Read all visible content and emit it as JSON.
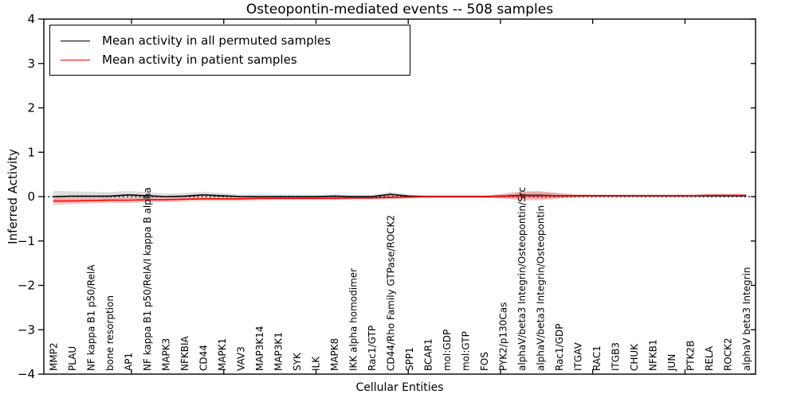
{
  "chart_data": {
    "type": "line",
    "title": "Osteopontin-mediated events -- 508 samples",
    "xlabel": "Cellular Entities",
    "ylabel": "Inferred Activity",
    "ylim": [
      -4,
      4
    ],
    "yticks": [
      4,
      3,
      2,
      1,
      0,
      -1,
      -2,
      -3,
      -4
    ],
    "grid": false,
    "legend_position": "upper left",
    "zero_line": {
      "value": 0,
      "style": "dotted",
      "color": "#000000"
    },
    "x_tick_label_rotation": 90,
    "categories": [
      "MMP2",
      "PLAU",
      "NF kappa B1 p50/RelA",
      "bone resorption",
      "AP1",
      "NF kappa B1 p50/RelA/I kappa B alpha",
      "MAPK3",
      "NFKBIA",
      "CD44",
      "MAPK1",
      "VAV3",
      "MAP3K14",
      "MAP3K1",
      "SYK",
      "ILK",
      "MAPK8",
      "IKK alpha homodimer",
      "Rac1/GTP",
      "CD44/Rho Family GTPase/ROCK2",
      "SPP1",
      "BCAR1",
      "mol:GDP",
      "mol:GTP",
      "FOS",
      "PYK2/p130Cas",
      "alphaV/beta3 Integrin/Osteopontin/Src",
      "alphaV/beta3 Integrin/Osteopontin",
      "Rac1/GDP",
      "ITGAV",
      "RAC1",
      "ITGB3",
      "CHUK",
      "NFKB1",
      "JUN",
      "PTK2B",
      "RELA",
      "ROCK2",
      "alphaV beta3 Integrin"
    ],
    "series": [
      {
        "name": "Mean activity in all permuted samples",
        "color": "#000000",
        "band_color": "#bbbbbb",
        "band_opacity": 0.5,
        "values": [
          0.0,
          0.01,
          0.01,
          0.01,
          0.04,
          0.02,
          0.0,
          0.01,
          0.04,
          0.02,
          0.0,
          0.0,
          0.0,
          0.0,
          0.0,
          0.01,
          0.0,
          0.0,
          0.05,
          0.01,
          0.0,
          0.0,
          0.0,
          0.0,
          0.01,
          0.03,
          0.03,
          0.02,
          0.02,
          0.02,
          0.02,
          0.02,
          0.02,
          0.02,
          0.02,
          0.02,
          0.02,
          0.02
        ],
        "band_halfwidth": [
          0.13,
          0.11,
          0.1,
          0.09,
          0.09,
          0.08,
          0.07,
          0.07,
          0.07,
          0.06,
          0.05,
          0.05,
          0.05,
          0.05,
          0.04,
          0.04,
          0.04,
          0.04,
          0.06,
          0.04,
          0.03,
          0.03,
          0.03,
          0.03,
          0.05,
          0.08,
          0.08,
          0.05,
          0.03,
          0.03,
          0.03,
          0.03,
          0.03,
          0.03,
          0.03,
          0.03,
          0.03,
          0.03
        ]
      },
      {
        "name": "Mean activity in patient samples",
        "color": "#ff0000",
        "band_color": "#ff7070",
        "band_opacity": 0.45,
        "values": [
          -0.1,
          -0.1,
          -0.09,
          -0.08,
          -0.08,
          -0.07,
          -0.07,
          -0.06,
          -0.05,
          -0.05,
          -0.05,
          -0.04,
          -0.04,
          -0.04,
          -0.04,
          -0.04,
          -0.03,
          -0.03,
          -0.02,
          -0.01,
          0.0,
          0.0,
          0.0,
          0.0,
          0.01,
          0.02,
          0.02,
          0.02,
          0.02,
          0.02,
          0.02,
          0.02,
          0.02,
          0.02,
          0.02,
          0.03,
          0.03,
          0.03
        ],
        "band_halfwidth": [
          0.08,
          0.07,
          0.06,
          0.06,
          0.06,
          0.05,
          0.05,
          0.05,
          0.04,
          0.04,
          0.04,
          0.04,
          0.03,
          0.03,
          0.03,
          0.03,
          0.03,
          0.03,
          0.04,
          0.03,
          0.02,
          0.02,
          0.02,
          0.02,
          0.05,
          0.1,
          0.1,
          0.06,
          0.03,
          0.02,
          0.02,
          0.02,
          0.02,
          0.02,
          0.02,
          0.02,
          0.02,
          0.02
        ]
      }
    ]
  }
}
